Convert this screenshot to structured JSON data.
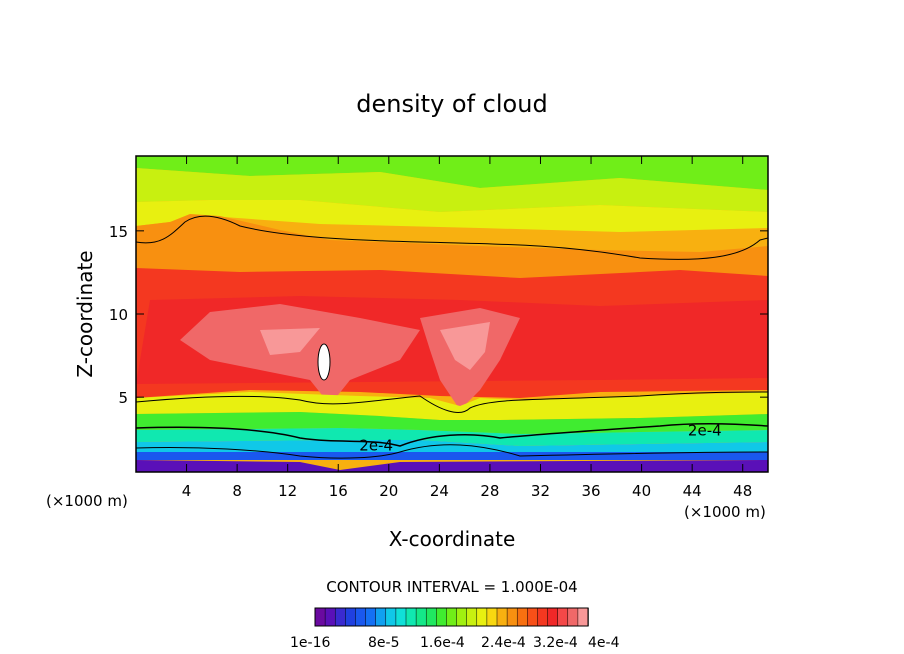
{
  "chart_data": {
    "type": "heatmap",
    "title": "density of cloud",
    "xlabel": "X-coordinate",
    "ylabel": "Z-coordinate",
    "x_unit": "(×1000 m)",
    "x_unit_right": "(×1000 m)",
    "xlim": [
      0,
      50
    ],
    "ylim": [
      0.5,
      19.5
    ],
    "x_ticks": [
      4,
      8,
      12,
      16,
      20,
      24,
      28,
      32,
      36,
      40,
      44,
      48
    ],
    "y_ticks": [
      5,
      10,
      15
    ],
    "contour_interval_text": "CONTOUR INTERVAL = 1.000E-04",
    "contour_labels": [
      {
        "text": "2e-4",
        "x": 19,
        "z": 2.1
      },
      {
        "text": "2e-4",
        "x": 45,
        "z": 3.0
      }
    ],
    "colorbar": {
      "min": 1e-16,
      "max": 0.0004,
      "levels": 27,
      "colors": [
        "#6a0aa0",
        "#5a10b8",
        "#3a2ad0",
        "#2040e0",
        "#1a58ee",
        "#1470f4",
        "#10a0f0",
        "#10c8e8",
        "#10e0d8",
        "#10e8b0",
        "#14e888",
        "#20e860",
        "#40ec30",
        "#70ee18",
        "#a0f010",
        "#c8f010",
        "#e8f010",
        "#f8d810",
        "#f8b010",
        "#f89010",
        "#f87010",
        "#f85018",
        "#f43820",
        "#f02828",
        "#f44848",
        "#f06868",
        "#f89898"
      ],
      "tick_labels": [
        "1e-16",
        "8e-5",
        "1.6e-4",
        "2.4e-4",
        "3.2e-4",
        "4e-4"
      ]
    },
    "grid": false
  }
}
